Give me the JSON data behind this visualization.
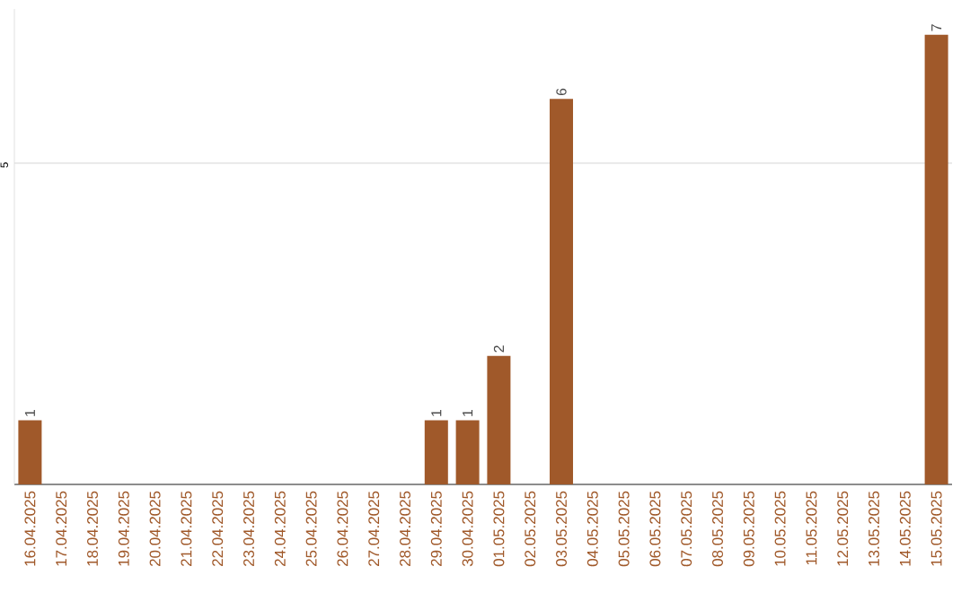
{
  "chart_data": {
    "type": "bar",
    "categories": [
      "16.04.2025",
      "17.04.2025",
      "18.04.2025",
      "19.04.2025",
      "20.04.2025",
      "21.04.2025",
      "22.04.2025",
      "23.04.2025",
      "24.04.2025",
      "25.04.2025",
      "26.04.2025",
      "27.04.2025",
      "28.04.2025",
      "29.04.2025",
      "30.04.2025",
      "01.05.2025",
      "02.05.2025",
      "03.05.2025",
      "04.05.2025",
      "05.05.2025",
      "06.05.2025",
      "07.05.2025",
      "08.05.2025",
      "09.05.2025",
      "10.05.2025",
      "11.05.2025",
      "12.05.2025",
      "13.05.2025",
      "14.05.2025",
      "15.05.2025"
    ],
    "values": [
      1,
      0,
      0,
      0,
      0,
      0,
      0,
      0,
      0,
      0,
      0,
      0,
      0,
      1,
      1,
      2,
      0,
      6,
      0,
      0,
      0,
      0,
      0,
      0,
      0,
      0,
      0,
      0,
      0,
      7
    ],
    "value_labels": [
      "1",
      null,
      null,
      null,
      null,
      null,
      null,
      null,
      null,
      null,
      null,
      null,
      null,
      "1",
      "1",
      "2",
      null,
      "6",
      null,
      null,
      null,
      null,
      null,
      null,
      null,
      null,
      null,
      null,
      null,
      "7"
    ],
    "color": "#a0592a",
    "ylim": [
      0,
      7.4
    ],
    "yticks": [
      {
        "value": 0,
        "label": null
      },
      5
    ],
    "grid": "y"
  }
}
